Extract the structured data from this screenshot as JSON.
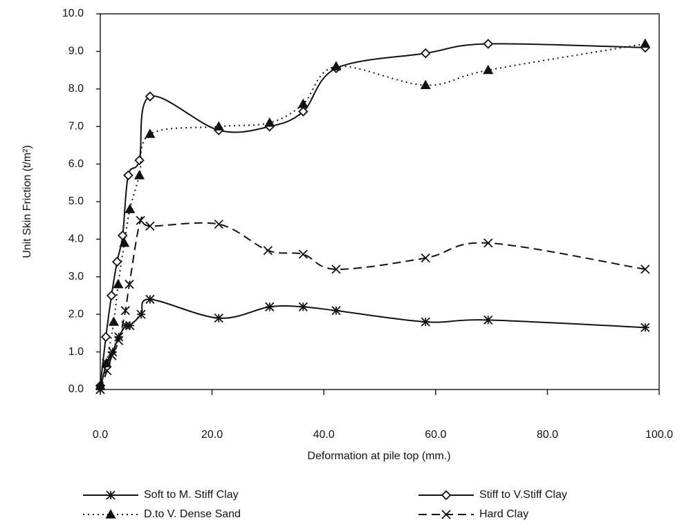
{
  "chart_data": {
    "type": "line",
    "xlabel": "Deformation at pile top (mm.)",
    "ylabel": "Unit Skin Friction (t/m²)",
    "xlim": [
      0,
      100
    ],
    "ylim": [
      0,
      10
    ],
    "xticks": [
      {
        "value": 0,
        "label": "0.0"
      },
      {
        "value": 20,
        "label": "20.0"
      },
      {
        "value": 40,
        "label": "40.0"
      },
      {
        "value": 60,
        "label": "60.0"
      },
      {
        "value": 80,
        "label": "80.0"
      },
      {
        "value": 100,
        "label": "100.0"
      }
    ],
    "yticks": [
      {
        "value": 0,
        "label": "0.0"
      },
      {
        "value": 1,
        "label": "1.0"
      },
      {
        "value": 2,
        "label": "2.0"
      },
      {
        "value": 3,
        "label": "3.0"
      },
      {
        "value": 4,
        "label": "4.0"
      },
      {
        "value": 5,
        "label": "5.0"
      },
      {
        "value": 6,
        "label": "6.0"
      },
      {
        "value": 7,
        "label": "7.0"
      },
      {
        "value": 8,
        "label": "8.0"
      },
      {
        "value": 9,
        "label": "9.0"
      },
      {
        "value": 10,
        "label": "10.0"
      }
    ],
    "series": [
      {
        "name": "Soft to M. Stiff Clay",
        "color": "#111111",
        "marker": "asterisk",
        "dash": "solid",
        "x": [
          0,
          1.1,
          2.2,
          3.3,
          4.6,
          5.3,
          7.3,
          8.9,
          21.2,
          30.3,
          36.3,
          42.2,
          58.2,
          69.4,
          97.5
        ],
        "values": [
          0,
          0.7,
          1.0,
          1.4,
          1.7,
          1.7,
          2.0,
          2.4,
          1.9,
          2.2,
          2.2,
          2.1,
          1.8,
          1.85,
          1.65
        ]
      },
      {
        "name": "Stiff to V.Stiff Clay",
        "color": "#111111",
        "marker": "diamond",
        "dash": "solid",
        "x": [
          0,
          1.0,
          2.0,
          3.0,
          4.0,
          5.0,
          7.0,
          8.9,
          21.2,
          30.3,
          36.3,
          42.2,
          58.2,
          69.4,
          97.5
        ],
        "values": [
          0.1,
          1.4,
          2.5,
          3.4,
          4.1,
          5.7,
          6.1,
          7.8,
          6.9,
          7.0,
          7.4,
          8.55,
          8.95,
          9.2,
          9.1
        ]
      },
      {
        "name": "D.to V. Dense Sand",
        "color": "#111111",
        "marker": "triangle",
        "dash": "dotted",
        "x": [
          0,
          1.1,
          2.4,
          3.2,
          4.3,
          5.3,
          7.0,
          8.9,
          21.2,
          30.3,
          36.3,
          42.2,
          58.2,
          69.4,
          97.5
        ],
        "values": [
          0.1,
          0.7,
          1.8,
          2.8,
          3.9,
          4.8,
          5.7,
          6.8,
          7.0,
          7.1,
          7.6,
          8.6,
          8.1,
          8.5,
          9.2
        ]
      },
      {
        "name": "Hard Clay",
        "color": "#111111",
        "marker": "x",
        "dash": "dashed",
        "x": [
          0,
          1.2,
          2.1,
          3.3,
          4.5,
          5.2,
          7.2,
          8.9,
          21.2,
          30.0,
          36.3,
          42.2,
          58.2,
          69.4,
          97.5
        ],
        "values": [
          0,
          0.5,
          0.9,
          1.3,
          2.1,
          2.8,
          4.5,
          4.35,
          4.4,
          3.7,
          3.6,
          3.2,
          3.5,
          3.9,
          3.2
        ]
      }
    ]
  }
}
